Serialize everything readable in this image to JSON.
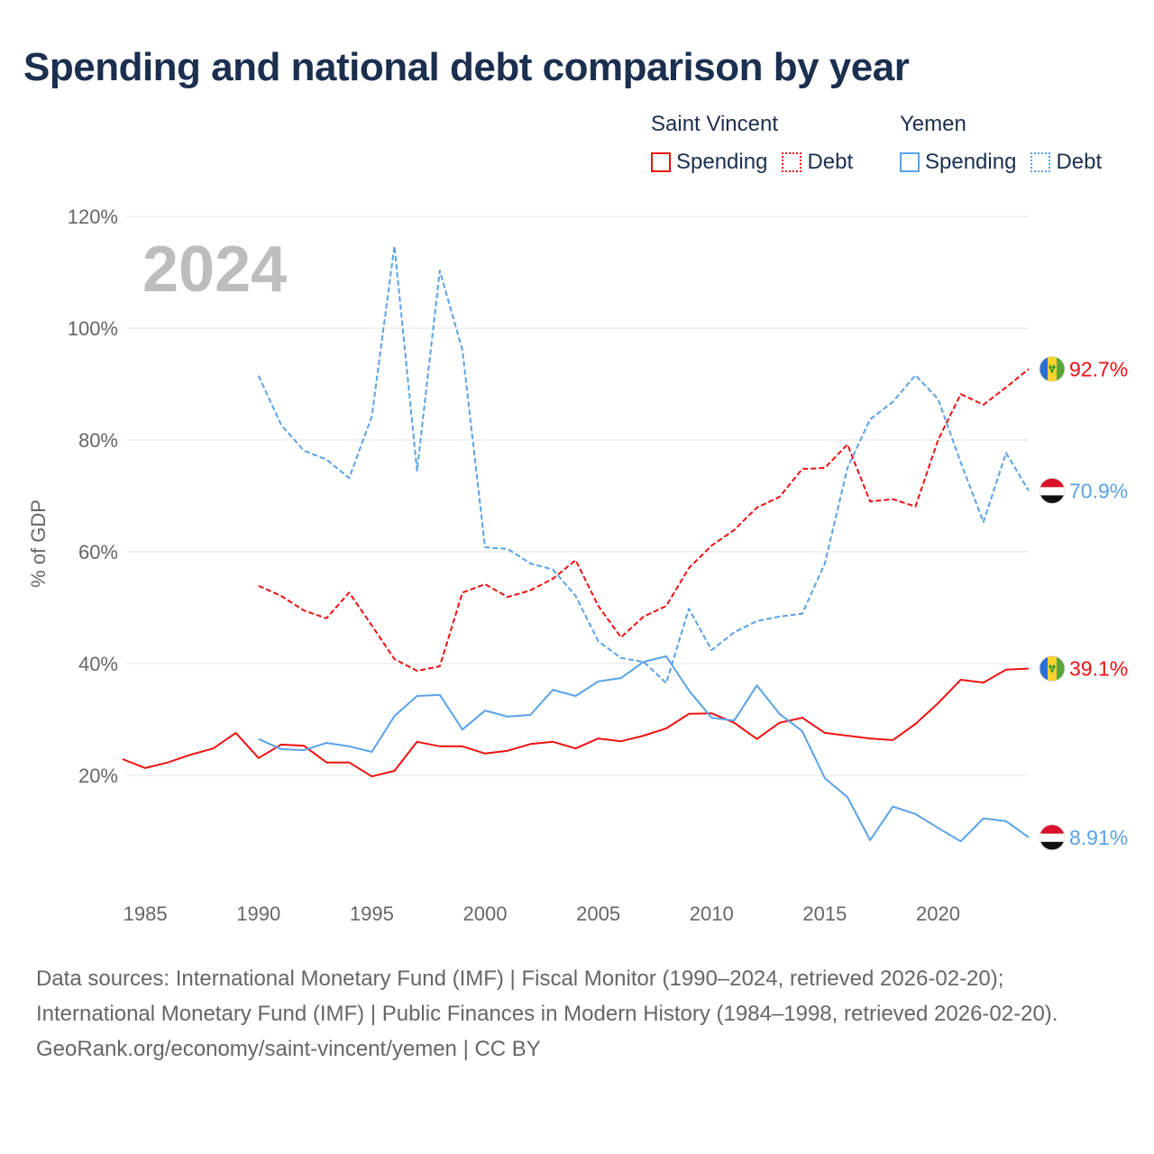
{
  "title": "Spending and national debt comparison by year",
  "legend": {
    "groups": [
      {
        "name": "Saint Vincent",
        "items": [
          {
            "label": "Spending",
            "style": "solid"
          },
          {
            "label": "Debt",
            "style": "dotted"
          }
        ],
        "color": "#ee1111"
      },
      {
        "name": "Yemen",
        "items": [
          {
            "label": "Spending",
            "style": "solid"
          },
          {
            "label": "Debt",
            "style": "dotted"
          }
        ],
        "color": "#5aa2e6"
      }
    ]
  },
  "chart_data": {
    "type": "line",
    "title": "Spending and national debt comparison by year",
    "year_label": "2024",
    "ylabel": "% of GDP",
    "xlabel": "",
    "xlim": [
      1984,
      2024
    ],
    "ylim": [
      0,
      120
    ],
    "xticks": [
      1985,
      1990,
      1995,
      2000,
      2005,
      2010,
      2015,
      2020
    ],
    "yticks": [
      20,
      40,
      60,
      80,
      100,
      120
    ],
    "ytick_labels": [
      "20%",
      "40%",
      "60%",
      "80%",
      "100%",
      "120%"
    ],
    "grid": true,
    "series": [
      {
        "name": "Saint Vincent Spending",
        "country": "saint-vincent",
        "color": "#ee1111",
        "dash": "solid",
        "end_label": "39.1%",
        "start": 1984,
        "values": [
          22.9,
          21.3,
          22.3,
          23.7,
          24.8,
          27.6,
          23.1,
          25.5,
          25.3,
          22.3,
          22.3,
          19.8,
          20.8,
          26.0,
          25.2,
          25.2,
          23.9,
          24.4,
          25.6,
          26.0,
          24.8,
          26.6,
          26.1,
          27.1,
          28.4,
          31.0,
          31.1,
          29.4,
          26.5,
          29.4,
          30.3,
          27.6,
          27.1,
          26.6,
          26.3,
          29.2,
          32.9,
          37.1,
          36.6,
          38.9,
          39.1
        ]
      },
      {
        "name": "Saint Vincent Debt",
        "country": "saint-vincent",
        "color": "#ee1111",
        "dash": "dashed",
        "end_label": "92.7%",
        "start": 1990,
        "values": [
          53.9,
          52.1,
          49.5,
          48.1,
          52.7,
          46.8,
          40.8,
          38.7,
          39.5,
          52.7,
          54.2,
          51.9,
          53.1,
          55.2,
          58.5,
          50.3,
          44.7,
          48.4,
          50.3,
          57.1,
          61.1,
          63.9,
          67.9,
          69.8,
          74.8,
          75.0,
          79.2,
          69.0,
          69.4,
          68.1,
          80.0,
          88.2,
          86.3,
          89.4,
          92.7
        ]
      },
      {
        "name": "Yemen Spending",
        "country": "yemen",
        "color": "#5aa2e6",
        "dash": "solid",
        "end_label": "8.91%",
        "start": 1990,
        "values": [
          26.5,
          24.7,
          24.5,
          25.8,
          25.2,
          24.2,
          30.6,
          34.2,
          34.4,
          28.2,
          31.6,
          30.5,
          30.8,
          35.3,
          34.2,
          36.8,
          37.4,
          40.3,
          41.3,
          35.2,
          30.3,
          29.8,
          36.1,
          31.0,
          27.9,
          19.5,
          16.1,
          8.4,
          14.4,
          13.1,
          10.6,
          8.2,
          12.3,
          11.8,
          8.91
        ]
      },
      {
        "name": "Yemen Debt",
        "country": "yemen",
        "color": "#5aa2e6",
        "dash": "dashed",
        "end_label": "70.9%",
        "start": 1990,
        "values": [
          91.5,
          82.7,
          78.1,
          76.5,
          73.2,
          84.2,
          114.7,
          74.5,
          110.3,
          96.1,
          60.8,
          60.5,
          57.9,
          56.8,
          52.1,
          44.0,
          41.0,
          40.3,
          36.5,
          49.8,
          42.4,
          45.6,
          47.6,
          48.4,
          48.9,
          57.9,
          75.0,
          83.7,
          86.8,
          91.6,
          87.3,
          76.0,
          65.3,
          77.7,
          70.9
        ]
      }
    ]
  },
  "footer": {
    "sources": "Data sources: International Monetary Fund (IMF) | Fiscal Monitor (1990–2024, retrieved 2026-02-20); International Monetary Fund (IMF) | Public Finances in Modern History (1984–1998, retrieved 2026-02-20).",
    "attribution": "GeoRank.org/economy/saint-vincent/yemen | CC BY"
  }
}
